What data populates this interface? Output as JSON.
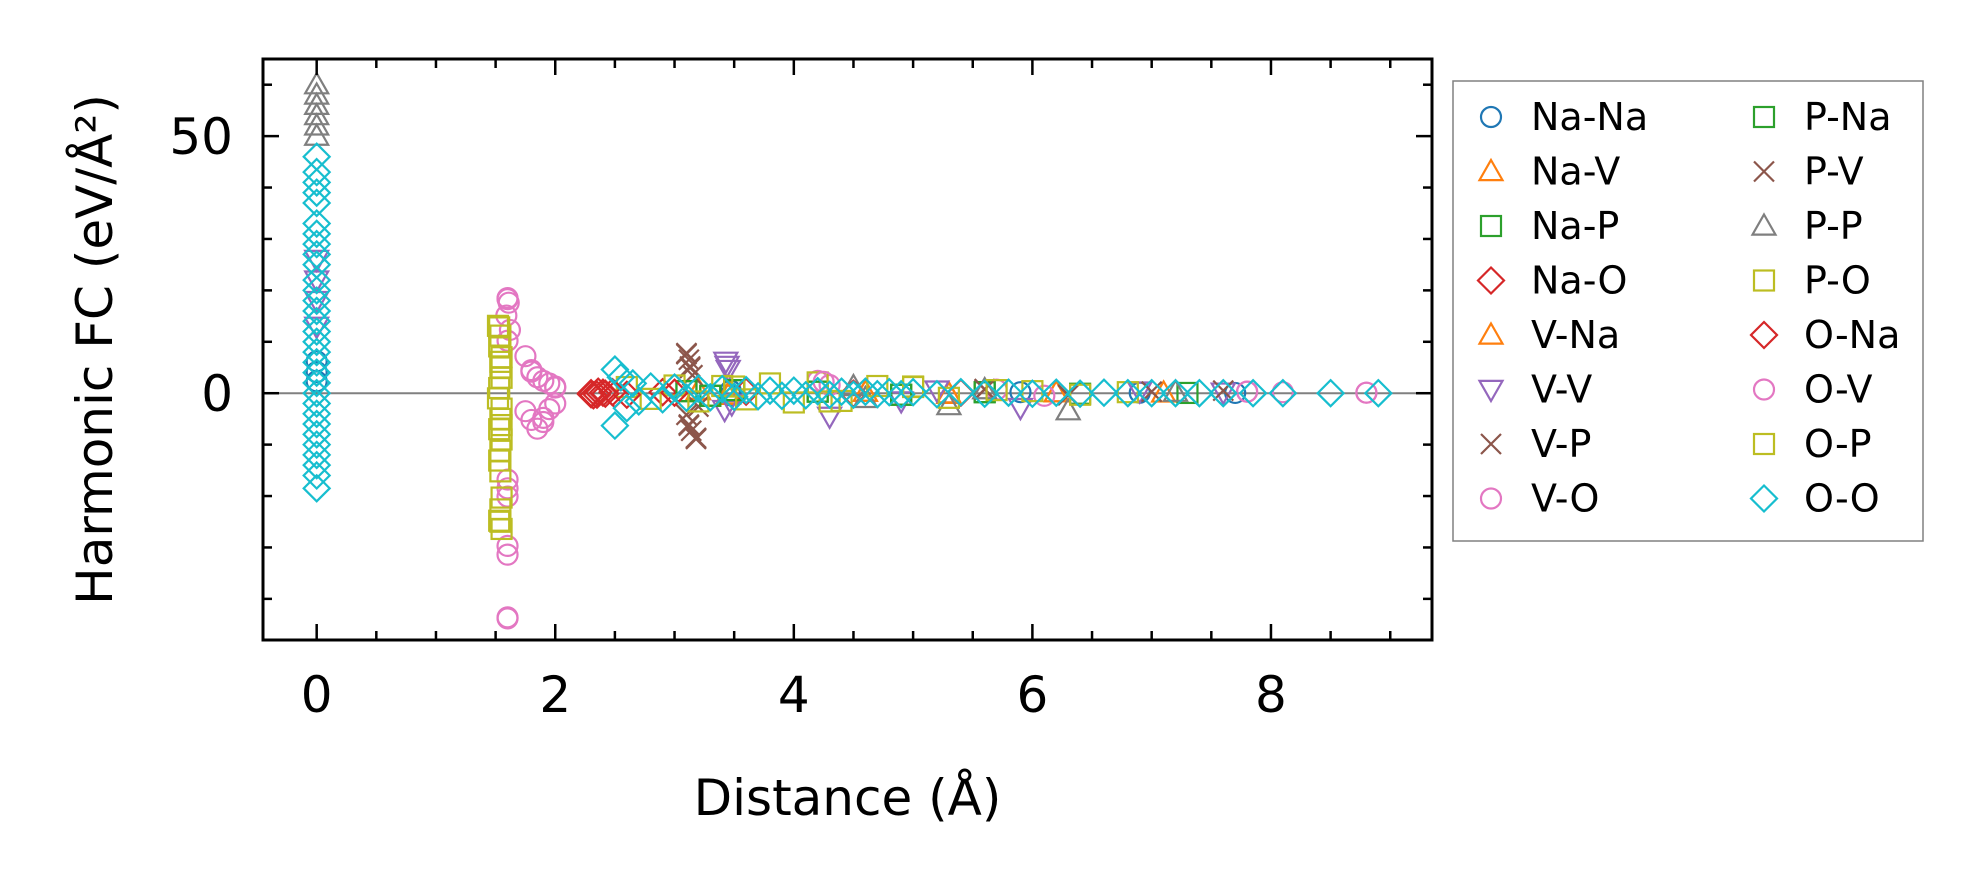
{
  "chart_data": {
    "type": "scatter",
    "xlabel": "Distance (Å)",
    "ylabel": "Harmonic FC (eV/Å²)",
    "xlim": [
      -0.45,
      9.35
    ],
    "ylim": [
      -48,
      65
    ],
    "x_ticks": [
      0,
      2,
      4,
      6,
      8
    ],
    "y_ticks": [
      0,
      50
    ],
    "x_tick_labels": [
      "0",
      "2",
      "4",
      "6",
      "8"
    ],
    "y_tick_labels": [
      "0",
      "50"
    ],
    "zero_line": true,
    "grid": false,
    "legend_placement": "outside-right",
    "legend_columns": 2,
    "series": [
      {
        "name": "Na-Na",
        "marker": "circle",
        "color": "#1f77b4",
        "points": [
          [
            0.0,
            6.2
          ],
          [
            0.0,
            4.1
          ],
          [
            0.0,
            2.3
          ],
          [
            3.47,
            0.5
          ],
          [
            3.47,
            -0.4
          ],
          [
            5.9,
            0.2
          ],
          [
            6.9,
            0.1
          ],
          [
            7.7,
            0.05
          ]
        ]
      },
      {
        "name": "Na-V",
        "marker": "triangle-up",
        "color": "#ff7f0e",
        "points": [
          [
            3.2,
            0.6
          ],
          [
            3.45,
            -0.4
          ],
          [
            3.46,
            0.3
          ],
          [
            4.6,
            0.2
          ],
          [
            5.3,
            -0.2
          ],
          [
            6.2,
            0.1
          ],
          [
            7.1,
            0.05
          ]
        ]
      },
      {
        "name": "Na-P",
        "marker": "square",
        "color": "#2ca02c",
        "points": [
          [
            3.1,
            0.4
          ],
          [
            3.3,
            -0.5
          ],
          [
            3.5,
            0.6
          ],
          [
            4.2,
            0.3
          ],
          [
            4.9,
            -0.3
          ],
          [
            5.6,
            0.2
          ],
          [
            6.4,
            -0.1
          ],
          [
            7.3,
            0.05
          ]
        ]
      },
      {
        "name": "Na-O",
        "marker": "diamond",
        "color": "#d62728",
        "points": [
          [
            2.3,
            -0.2
          ],
          [
            2.35,
            -0.3
          ],
          [
            2.4,
            0.1
          ],
          [
            2.5,
            -0.2
          ],
          [
            2.9,
            0.2
          ],
          [
            3.6,
            0.3
          ],
          [
            4.5,
            -0.1
          ],
          [
            5.4,
            0.1
          ]
        ]
      },
      {
        "name": "V-Na",
        "marker": "triangle-up",
        "color": "#ff7f0e",
        "points": [
          [
            3.2,
            0.5
          ],
          [
            3.45,
            -0.3
          ],
          [
            4.6,
            0.2
          ],
          [
            5.3,
            -0.1
          ],
          [
            6.2,
            0.1
          ]
        ]
      },
      {
        "name": "V-V",
        "marker": "triangle-down",
        "color": "#9467bd",
        "points": [
          [
            0.0,
            26
          ],
          [
            0.0,
            22
          ],
          [
            0.0,
            18
          ],
          [
            0.0,
            13
          ],
          [
            3.43,
            6.2
          ],
          [
            3.44,
            5.4
          ],
          [
            3.45,
            4.6
          ],
          [
            3.42,
            -3.2
          ],
          [
            3.48,
            -2.1
          ],
          [
            4.3,
            -4.5
          ],
          [
            4.9,
            -1.5
          ],
          [
            5.2,
            0.6
          ],
          [
            5.9,
            -2.8
          ],
          [
            6.9,
            0.4
          ],
          [
            7.6,
            0.2
          ]
        ]
      },
      {
        "name": "V-P",
        "marker": "x",
        "color": "#8c564b",
        "points": [
          [
            3.1,
            7.8
          ],
          [
            3.12,
            6.5
          ],
          [
            3.13,
            4.9
          ],
          [
            3.15,
            3.5
          ],
          [
            3.1,
            -4.2
          ],
          [
            3.12,
            -6.1
          ],
          [
            3.14,
            -7.3
          ],
          [
            3.18,
            -8.7
          ],
          [
            3.2,
            -2.6
          ],
          [
            5.6,
            0.8
          ],
          [
            6.3,
            -0.4
          ],
          [
            7.0,
            0.3
          ],
          [
            7.6,
            0.5
          ]
        ]
      },
      {
        "name": "V-O",
        "marker": "circle",
        "color": "#e377c2",
        "points": [
          [
            1.6,
            18.5
          ],
          [
            1.61,
            17.6
          ],
          [
            1.59,
            15.1
          ],
          [
            1.62,
            12.3
          ],
          [
            1.6,
            10.2
          ],
          [
            1.6,
            -16.8
          ],
          [
            1.6,
            -18.5
          ],
          [
            1.6,
            -20.1
          ],
          [
            1.6,
            -29.7
          ],
          [
            1.6,
            -31.4
          ],
          [
            1.6,
            -43.8
          ],
          [
            1.75,
            7.2
          ],
          [
            1.8,
            4.2
          ],
          [
            1.85,
            3.1
          ],
          [
            1.9,
            2.4
          ],
          [
            1.95,
            1.9
          ],
          [
            2.0,
            1.1
          ],
          [
            1.75,
            -3.5
          ],
          [
            1.8,
            -5.2
          ],
          [
            1.85,
            -6.9
          ],
          [
            1.9,
            -4.8
          ],
          [
            1.95,
            -3.1
          ],
          [
            2.0,
            -2.0
          ],
          [
            4.2,
            2.4
          ],
          [
            4.3,
            1.6
          ],
          [
            5.7,
            0.7
          ],
          [
            6.1,
            -0.5
          ],
          [
            7.8,
            0.3
          ],
          [
            8.1,
            0.2
          ],
          [
            8.8,
            0.1
          ]
        ]
      },
      {
        "name": "P-Na",
        "marker": "square",
        "color": "#2ca02c",
        "points": [
          [
            3.1,
            0.4
          ],
          [
            3.3,
            -0.5
          ],
          [
            3.5,
            0.6
          ],
          [
            4.2,
            0.3
          ],
          [
            4.9,
            -0.3
          ],
          [
            5.6,
            0.2
          ]
        ]
      },
      {
        "name": "P-V",
        "marker": "x",
        "color": "#8c564b",
        "points": [
          [
            3.1,
            7.6
          ],
          [
            3.13,
            5.2
          ],
          [
            3.12,
            -6.3
          ],
          [
            3.18,
            -8.9
          ],
          [
            5.6,
            0.7
          ],
          [
            6.3,
            -0.3
          ]
        ]
      },
      {
        "name": "P-P",
        "marker": "triangle-up",
        "color": "#7f7f7f",
        "points": [
          [
            0.0,
            60
          ],
          [
            0.0,
            58
          ],
          [
            0.0,
            56
          ],
          [
            0.0,
            54
          ],
          [
            0.0,
            52
          ],
          [
            0.0,
            50
          ],
          [
            4.5,
            1.3
          ],
          [
            4.6,
            -1.0
          ],
          [
            5.3,
            -2.4
          ],
          [
            5.6,
            0.7
          ],
          [
            6.3,
            -3.4
          ],
          [
            7.2,
            0.2
          ]
        ]
      },
      {
        "name": "P-O",
        "marker": "square",
        "color": "#bcbd22",
        "points": [
          [
            1.52,
            13.1
          ],
          [
            1.54,
            11.2
          ],
          [
            1.53,
            9.1
          ],
          [
            1.55,
            7.0
          ],
          [
            1.54,
            5.0
          ],
          [
            1.55,
            3.0
          ],
          [
            1.53,
            1.0
          ],
          [
            1.52,
            -1.0
          ],
          [
            1.55,
            -3.0
          ],
          [
            1.54,
            -5.0
          ],
          [
            1.53,
            -7.0
          ],
          [
            1.55,
            -9.0
          ],
          [
            1.54,
            -11.2
          ],
          [
            1.53,
            -13.1
          ],
          [
            1.54,
            -15.2
          ],
          [
            1.55,
            -20.3
          ],
          [
            1.54,
            -22.6
          ],
          [
            1.53,
            -24.8
          ],
          [
            1.55,
            -26.4
          ],
          [
            2.6,
            1.2
          ],
          [
            2.8,
            -1.1
          ],
          [
            3.0,
            1.5
          ],
          [
            3.2,
            -1.6
          ],
          [
            3.4,
            1.4
          ],
          [
            3.6,
            -1.2
          ],
          [
            3.8,
            1.9
          ],
          [
            4.0,
            -1.8
          ],
          [
            4.2,
            2.1
          ],
          [
            4.4,
            -1.5
          ],
          [
            4.7,
            1.4
          ],
          [
            5.0,
            1.3
          ],
          [
            5.3,
            -0.9
          ],
          [
            5.7,
            0.6
          ],
          [
            6.0,
            0.4
          ],
          [
            6.4,
            -0.3
          ],
          [
            6.8,
            0.2
          ]
        ]
      },
      {
        "name": "O-Na",
        "marker": "diamond",
        "color": "#d62728",
        "points": [
          [
            2.3,
            0.0
          ],
          [
            2.32,
            -0.4
          ],
          [
            2.36,
            0.3
          ],
          [
            2.42,
            -0.1
          ],
          [
            2.48,
            0.2
          ],
          [
            2.6,
            -0.3
          ],
          [
            3.0,
            0.1
          ]
        ]
      },
      {
        "name": "O-V",
        "marker": "circle",
        "color": "#e377c2",
        "points": [
          [
            1.6,
            18.3
          ],
          [
            1.6,
            -43.6
          ],
          [
            1.8,
            4.5
          ],
          [
            1.9,
            -5.6
          ],
          [
            2.0,
            1.3
          ],
          [
            4.25,
            2.2
          ],
          [
            7.8,
            0.3
          ],
          [
            8.8,
            0.1
          ]
        ]
      },
      {
        "name": "O-P",
        "marker": "square",
        "color": "#bcbd22",
        "points": [
          [
            1.53,
            12.8
          ],
          [
            1.54,
            6.1
          ],
          [
            1.55,
            -6.2
          ],
          [
            1.54,
            -25.0
          ],
          [
            3.5,
            1.3
          ],
          [
            4.3,
            -1.6
          ],
          [
            5.0,
            1.2
          ]
        ]
      },
      {
        "name": "O-O",
        "marker": "diamond",
        "color": "#17becf",
        "points": [
          [
            0.0,
            46
          ],
          [
            0.0,
            43
          ],
          [
            0.0,
            41
          ],
          [
            0.0,
            39
          ],
          [
            0.0,
            37
          ],
          [
            0.0,
            33
          ],
          [
            0.0,
            31
          ],
          [
            0.0,
            29
          ],
          [
            0.0,
            27
          ],
          [
            0.0,
            25
          ],
          [
            0.0,
            22
          ],
          [
            0.0,
            20
          ],
          [
            0.0,
            18
          ],
          [
            0.0,
            16
          ],
          [
            0.0,
            14
          ],
          [
            0.0,
            12
          ],
          [
            0.0,
            10
          ],
          [
            0.0,
            8
          ],
          [
            0.0,
            6
          ],
          [
            0.0,
            4
          ],
          [
            0.0,
            2
          ],
          [
            0.0,
            0
          ],
          [
            0.0,
            -2
          ],
          [
            0.0,
            -4
          ],
          [
            0.0,
            -6
          ],
          [
            0.0,
            -8
          ],
          [
            0.0,
            -10
          ],
          [
            0.0,
            -12
          ],
          [
            0.0,
            -14
          ],
          [
            0.0,
            -16
          ],
          [
            0.0,
            -18.5
          ],
          [
            2.5,
            4.6
          ],
          [
            2.5,
            -6.3
          ],
          [
            2.55,
            3.1
          ],
          [
            2.6,
            -2.9
          ],
          [
            2.65,
            1.9
          ],
          [
            2.7,
            -1.6
          ],
          [
            2.8,
            1.3
          ],
          [
            2.9,
            -1.2
          ],
          [
            3.0,
            1.1
          ],
          [
            3.1,
            -0.9
          ],
          [
            3.2,
            0.9
          ],
          [
            3.3,
            -0.8
          ],
          [
            3.4,
            0.8
          ],
          [
            3.5,
            -0.7
          ],
          [
            3.6,
            0.6
          ],
          [
            3.7,
            -0.6
          ],
          [
            3.8,
            0.5
          ],
          [
            3.9,
            -0.5
          ],
          [
            4.0,
            0.5
          ],
          [
            4.1,
            -0.4
          ],
          [
            4.2,
            0.4
          ],
          [
            4.3,
            -0.3
          ],
          [
            4.4,
            0.3
          ],
          [
            4.5,
            -0.3
          ],
          [
            4.6,
            0.3
          ],
          [
            4.7,
            -0.2
          ],
          [
            4.8,
            0.2
          ],
          [
            4.9,
            -0.2
          ],
          [
            5.0,
            0.2
          ],
          [
            5.2,
            -0.2
          ],
          [
            5.4,
            0.2
          ],
          [
            5.6,
            -0.1
          ],
          [
            5.8,
            0.1
          ],
          [
            6.0,
            -0.1
          ],
          [
            6.2,
            0.1
          ],
          [
            6.4,
            -0.1
          ],
          [
            6.6,
            0.1
          ],
          [
            6.8,
            0.0
          ],
          [
            7.0,
            0.0
          ],
          [
            7.2,
            0.0
          ],
          [
            7.4,
            0.0
          ],
          [
            7.6,
            0.0
          ],
          [
            7.85,
            0.0
          ],
          [
            8.1,
            0.0
          ],
          [
            8.5,
            0.0
          ],
          [
            8.9,
            0.0
          ]
        ]
      }
    ]
  }
}
